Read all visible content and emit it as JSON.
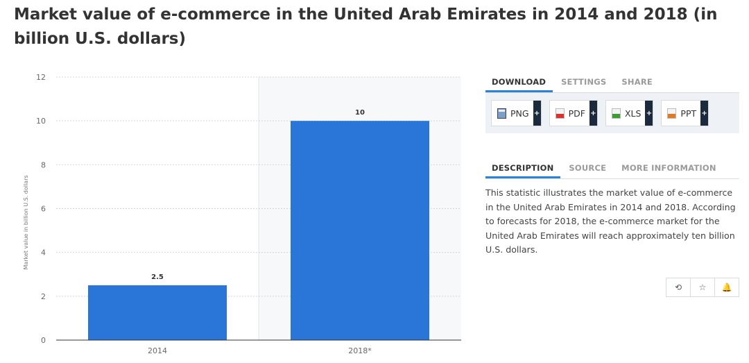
{
  "page": {
    "title": "Market value of e-commerce in the United Arab Emirates in 2014 and 2018 (in billion U.S. dollars)"
  },
  "chart_data": {
    "type": "bar",
    "categories": [
      "2014",
      "2018*"
    ],
    "values": [
      2.5,
      10
    ],
    "data_labels": [
      "2.5",
      "10"
    ],
    "ylabel": "Market value in billion U.S. dollars",
    "ylim": [
      0,
      12
    ],
    "yticks": [
      "0",
      "2",
      "4",
      "6",
      "8",
      "10",
      "12"
    ],
    "grid": true,
    "bar_color": "#2a76d8"
  },
  "panel": {
    "tabs_top": [
      {
        "label": "DOWNLOAD",
        "active": true
      },
      {
        "label": "SETTINGS",
        "active": false
      },
      {
        "label": "SHARE",
        "active": false
      }
    ],
    "downloads": [
      {
        "label": "PNG",
        "icon": "png-file-icon"
      },
      {
        "label": "PDF",
        "icon": "pdf-file-icon"
      },
      {
        "label": "XLS",
        "icon": "xls-file-icon"
      },
      {
        "label": "PPT",
        "icon": "ppt-file-icon"
      }
    ],
    "plus_symbol": "+",
    "tabs_info": [
      {
        "label": "DESCRIPTION",
        "active": true
      },
      {
        "label": "SOURCE",
        "active": false
      },
      {
        "label": "MORE INFORMATION",
        "active": false
      }
    ],
    "description": "This statistic illustrates the market value of e-commerce in the United Arab Emirates in 2014 and 2018. According to forecasts for 2018, the e-commerce market for the United Arab Emirates will reach approximately ten billion U.S. dollars.",
    "actions": [
      {
        "icon": "history-icon",
        "glyph": "⟲"
      },
      {
        "icon": "star-icon",
        "glyph": "☆"
      },
      {
        "icon": "bell-icon",
        "glyph": "🔔"
      }
    ]
  }
}
